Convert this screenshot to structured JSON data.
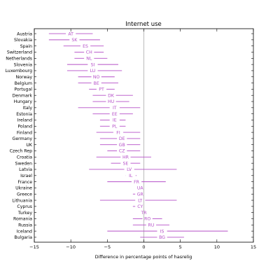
{
  "chart_data": {
    "type": "interval",
    "title": "Internet use",
    "xlabel": "Difference in percentage points of hasrelig",
    "ylabel": "",
    "xlim": [
      -15,
      15
    ],
    "xticks": [
      -15,
      -10,
      -5,
      0,
      5,
      10,
      15
    ],
    "grid": false,
    "zero_line": 0,
    "colors": {
      "interval": "#b54fc8",
      "zero_line": "#aaaaaa",
      "axis": "#000000"
    },
    "rows": [
      {
        "country": "Austria",
        "code": "AT",
        "low": -13.0,
        "high": -7.0,
        "estimate": -10.0
      },
      {
        "country": "Slovakia",
        "code": "SK",
        "low": -13.0,
        "high": -6.0,
        "estimate": -9.5
      },
      {
        "country": "Spain",
        "code": "ES",
        "low": -11.0,
        "high": -5.5,
        "estimate": -8.0
      },
      {
        "country": "Switzerland",
        "code": "CH",
        "low": -9.5,
        "high": -5.5,
        "estimate": -7.5
      },
      {
        "country": "Netherlands",
        "code": "NL",
        "low": -9.5,
        "high": -5.0,
        "estimate": -7.5
      },
      {
        "country": "Slovenia",
        "code": "SI",
        "low": -10.5,
        "high": -3.5,
        "estimate": -7.0
      },
      {
        "country": "Luxembourg",
        "code": "LU",
        "low": -10.5,
        "high": -3.0,
        "estimate": -7.0
      },
      {
        "country": "Norway",
        "code": "NO",
        "low": -9.0,
        "high": -4.0,
        "estimate": -6.5
      },
      {
        "country": "Belgium",
        "code": "BE",
        "low": -9.0,
        "high": -3.5,
        "estimate": -6.5
      },
      {
        "country": "Portugal",
        "code": "PT",
        "low": -7.5,
        "high": -4.0,
        "estimate": -5.8
      },
      {
        "country": "Denmark",
        "code": "DK",
        "low": -7.0,
        "high": -1.5,
        "estimate": -4.5
      },
      {
        "country": "Hungary",
        "code": "HU",
        "low": -7.0,
        "high": -2.0,
        "estimate": -4.5
      },
      {
        "country": "Italy",
        "code": "IT",
        "low": -9.0,
        "high": -0.5,
        "estimate": -4.0
      },
      {
        "country": "Estonia",
        "code": "EE",
        "low": -7.0,
        "high": -1.5,
        "estimate": -4.0
      },
      {
        "country": "Ireland",
        "code": "IE",
        "low": -6.0,
        "high": -2.5,
        "estimate": -4.0
      },
      {
        "country": "Poland",
        "code": "PL",
        "low": -6.0,
        "high": -2.5,
        "estimate": -4.0
      },
      {
        "country": "Finland",
        "code": "FI",
        "low": -6.5,
        "high": -0.5,
        "estimate": -3.5
      },
      {
        "country": "Germany",
        "code": "DE",
        "low": -6.0,
        "high": -0.5,
        "estimate": -3.0
      },
      {
        "country": "UK",
        "code": "GB",
        "low": -6.0,
        "high": -0.5,
        "estimate": -3.0
      },
      {
        "country": "Czech Rep",
        "code": "CZ",
        "low": -5.0,
        "high": -0.5,
        "estimate": -3.0
      },
      {
        "country": "Croatia",
        "code": "HR",
        "low": -6.5,
        "high": 1.0,
        "estimate": -2.5
      },
      {
        "country": "Sweden",
        "code": "SE",
        "low": -4.5,
        "high": -0.5,
        "estimate": -2.5
      },
      {
        "country": "Latvia",
        "code": "LV",
        "low": -7.5,
        "high": 4.5,
        "estimate": -2.0
      },
      {
        "country": "Israel",
        "code": "IL",
        "low": -2.5,
        "high": -1.0,
        "estimate": -1.8
      },
      {
        "country": "France",
        "code": "FR",
        "low": -5.0,
        "high": 3.0,
        "estimate": -1.0
      },
      {
        "country": "Ukraine",
        "code": "UA",
        "low": null,
        "high": null,
        "estimate": -0.5
      },
      {
        "country": "Greece",
        "code": "GR",
        "low": -1.5,
        "high": 0.0,
        "estimate": -0.5
      },
      {
        "country": "Lithuania",
        "code": "LT",
        "low": -6.0,
        "high": 4.5,
        "estimate": -0.5
      },
      {
        "country": "Cyprus",
        "code": "CY",
        "low": -1.5,
        "high": 0.0,
        "estimate": -0.5
      },
      {
        "country": "Turkey",
        "code": "TR",
        "low": null,
        "high": null,
        "estimate": 0.0
      },
      {
        "country": "Romania",
        "code": "RO",
        "low": -1.5,
        "high": 2.5,
        "estimate": 0.5
      },
      {
        "country": "Russia",
        "code": "RU",
        "low": -1.5,
        "high": 3.5,
        "estimate": 1.0
      },
      {
        "country": "Iceland",
        "code": "IS",
        "low": -5.0,
        "high": 11.5,
        "estimate": 2.5
      },
      {
        "country": "Bulgaria",
        "code": "BG",
        "low": -0.5,
        "high": 5.5,
        "estimate": 2.5
      }
    ]
  }
}
